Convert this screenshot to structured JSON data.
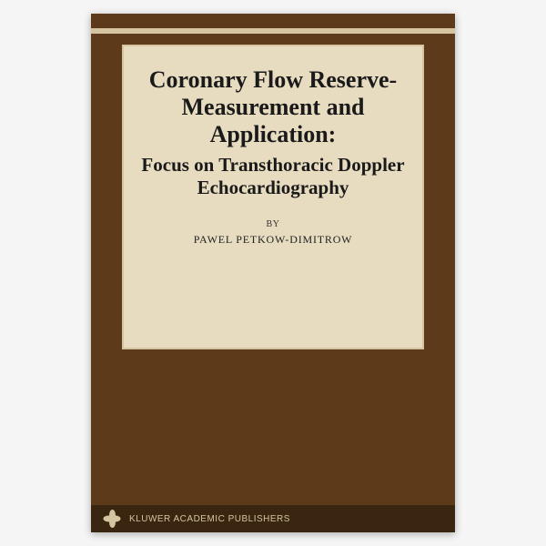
{
  "cover": {
    "main_title": "Coronary Flow Reserve-Measurement and Application:",
    "subtitle": "Focus on Transthoracic Doppler Echocardiography",
    "by_label": "BY",
    "author": "PAWEL PETKOW-DIMITROW",
    "publisher": "KLUWER ACADEMIC PUBLISHERS"
  },
  "style": {
    "cover_bg": "#5d3a1a",
    "panel_bg": "#e8dcc0",
    "stripe_color": "#d4c4a0",
    "publisher_bar_bg": "#3a2510",
    "title_color": "#1a1a1a",
    "title_fontsize": 26,
    "subtitle_fontsize": 21,
    "author_fontsize": 12,
    "publisher_fontsize": 10
  }
}
